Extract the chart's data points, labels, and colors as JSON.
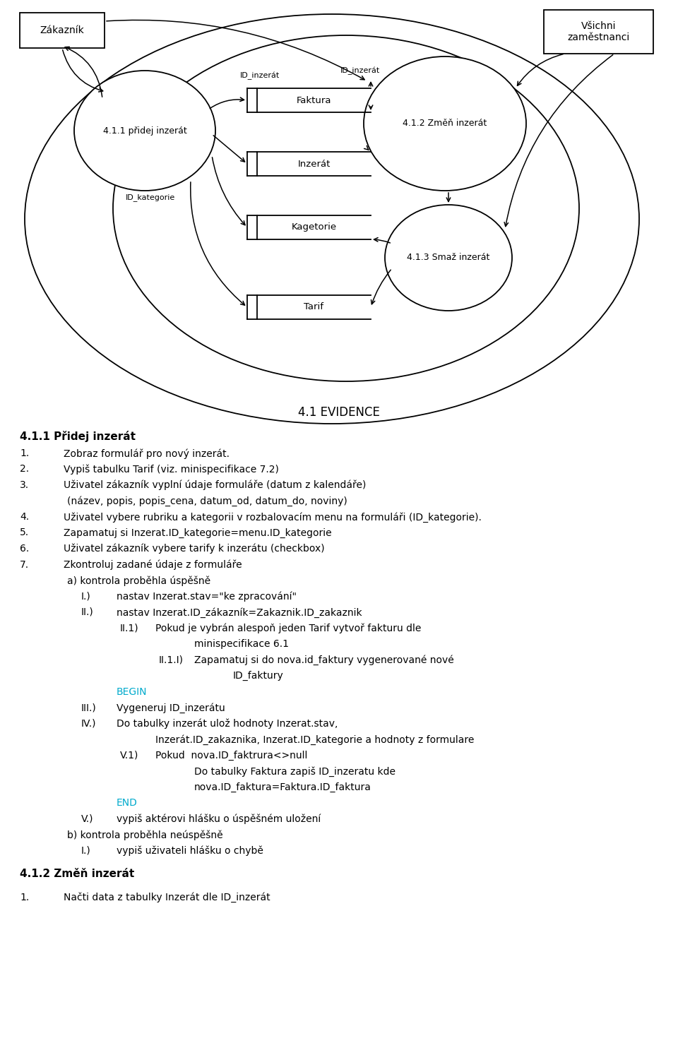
{
  "bg_color": "#ffffff",
  "diagram_title": "4.1 EVIDENCE",
  "section1_title": "4.1.1 Přidej inzerát",
  "section2_title": "4.1.2 Změň inzerát",
  "section1_items": [
    {
      "num": "1.",
      "indent": 0,
      "text": "Zobraz formulář pro nový inzerát.",
      "color": "#000000"
    },
    {
      "num": "2.",
      "indent": 0,
      "text": "Vypiš tabulku Tarif (viz. minispecifikace 7.2)",
      "color": "#000000"
    },
    {
      "num": "3.",
      "indent": 0,
      "text": "Uživatel zákazník vyplní údaje formuláře (datum z kalendáře)",
      "color": "#000000"
    },
    {
      "num": "",
      "indent": 1,
      "text": "(název, popis, popis_cena, datum_od, datum_do, noviny)",
      "color": "#000000"
    },
    {
      "num": "4.",
      "indent": 0,
      "text": "Uživatel vybere rubriku a kategorii v rozbalovacím menu na formuláři (ID_kategorie).",
      "color": "#000000"
    },
    {
      "num": "5.",
      "indent": 0,
      "text": "Zapamatuj si Inzerat.ID_kategorie=menu.ID_kategorie",
      "color": "#000000"
    },
    {
      "num": "6.",
      "indent": 0,
      "text": "Uživatel zákazník vybere tarify k inzerátu (checkbox)",
      "color": "#000000"
    },
    {
      "num": "7.",
      "indent": 0,
      "text": "Zkontroluj zadané údaje z formuláře",
      "color": "#000000"
    },
    {
      "num": "",
      "indent": 1,
      "text": "a) kontrola proběhla úspěšně",
      "color": "#000000"
    },
    {
      "num": "I.)",
      "indent": 2,
      "text": "nastav Inzerat.stav=\"ke zpracování\"",
      "color": "#000000"
    },
    {
      "num": "II.)",
      "indent": 2,
      "text": "nastav Inzerat.ID_zákazník=Zakaznik.ID_zakaznik",
      "color": "#000000"
    },
    {
      "num": "II.1)",
      "indent": 3,
      "text": "Pokud je vybrán alespoň jeden Tarif vytvoř fakturu dle",
      "color": "#000000"
    },
    {
      "num": "",
      "indent": 4,
      "text": "minispecifikace 6.1",
      "color": "#000000"
    },
    {
      "num": "II.1.I)",
      "indent": 4,
      "text": "Zapamatuj si do nova.id_faktury vygenerované nové",
      "color": "#000000"
    },
    {
      "num": "",
      "indent": 5,
      "text": "ID_faktury",
      "color": "#000000"
    },
    {
      "num": "BEGIN",
      "indent": 2,
      "text": "",
      "color": "#00aacc"
    },
    {
      "num": "III.)",
      "indent": 2,
      "text": "Vygeneruj ID_inzerátu",
      "color": "#000000"
    },
    {
      "num": "IV.)",
      "indent": 2,
      "text": "Do tabulky inzerát ulož hodnoty Inzerat.stav,",
      "color": "#000000"
    },
    {
      "num": "",
      "indent": 3,
      "text": "Inzerát.ID_zakaznika, Inzerat.ID_kategorie a hodnoty z formulare",
      "color": "#000000"
    },
    {
      "num": "V.1)",
      "indent": 3,
      "text": "Pokud  nova.ID_faktrura<>null",
      "color": "#000000"
    },
    {
      "num": "",
      "indent": 4,
      "text": "Do tabulky Faktura zapiš ID_inzeratu kde",
      "color": "#000000"
    },
    {
      "num": "",
      "indent": 4,
      "text": "nova.ID_faktura=Faktura.ID_faktura",
      "color": "#000000"
    },
    {
      "num": "END",
      "indent": 2,
      "text": "",
      "color": "#00aacc"
    },
    {
      "num": "V.)",
      "indent": 2,
      "text": "vypiš aktérovi hlášku o úspěšném uložení",
      "color": "#000000"
    },
    {
      "num": "",
      "indent": 1,
      "text": "b) kontrola proběhla neúspěšně",
      "color": "#000000"
    },
    {
      "num": "I.)",
      "indent": 2,
      "text": "vypiš uživateli hlášku o chybě",
      "color": "#000000"
    }
  ],
  "section2_items": [
    {
      "num": "1.",
      "indent": 0,
      "text": "Načti data z tabulky Inzerát dle ID_inzerát",
      "color": "#000000"
    }
  ]
}
